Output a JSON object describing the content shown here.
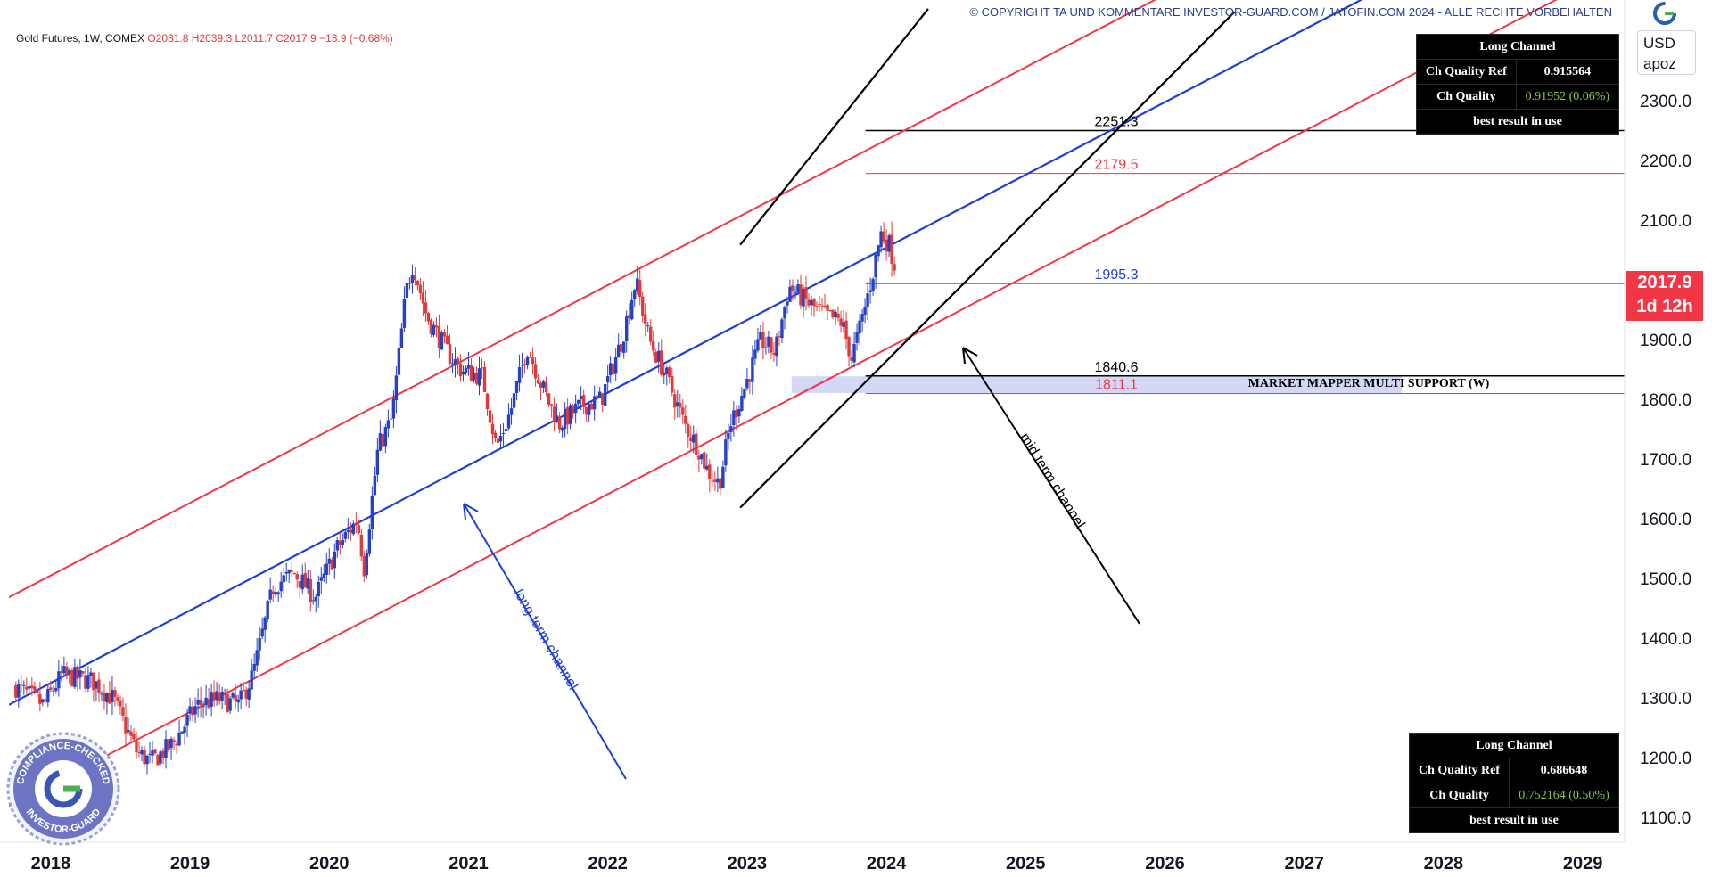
{
  "header": {
    "copyright": "© COPYRIGHT TA UND KOMMENTARE INVESTOR-GUARD.COM / JATOFIN.COM 2024 - ALLE RECHTE VORBEHALTEN"
  },
  "legend": {
    "symbol": "Gold Futures, 1W, COMEX",
    "open": "O2031.8",
    "high": "H2039.3",
    "low": "L2011.7",
    "close": "C2017.9",
    "change": "−13.9 (−0.68%)"
  },
  "price_scale": {
    "currency": "USD",
    "unit": "apoz",
    "last_price": "2017.9",
    "countdown": "1d 12h"
  },
  "table_top": {
    "title": "Long Channel",
    "ref_label": "Ch Quality Ref",
    "ref_value": "0.915564",
    "q_label": "Ch Quality",
    "q_value": "0.91952 (0.06%)",
    "footer": "best result in use"
  },
  "table_bottom": {
    "title": "Long Channel",
    "ref_label": "Ch Quality Ref",
    "ref_value": "0.686648",
    "q_label": "Ch Quality",
    "q_value": "0.752164 (0.50%)",
    "footer": "best result in use"
  },
  "seal": {
    "text_top": "COMPLIANCE-CHECKED",
    "text_bottom": "INVESTOR-GUARD"
  },
  "chart_data": {
    "type": "candlestick",
    "title": "Gold Futures, 1W, COMEX",
    "y_ticks": [
      1100,
      1200,
      1300,
      1400,
      1500,
      1600,
      1700,
      1800,
      1900,
      2000,
      2100,
      2200,
      2300
    ],
    "y_tick_labels": [
      "1100.0",
      "1200.0",
      "1300.0",
      "1400.0",
      "1500.0",
      "1600.0",
      "1700.0",
      "1800.0",
      "1900.0",
      "2000.0",
      "2100.0",
      "2200.0",
      "2300.0"
    ],
    "x_ticks": [
      "2018",
      "2019",
      "2020",
      "2021",
      "2022",
      "2023",
      "2024",
      "2025",
      "2026",
      "2027",
      "2028",
      "2029"
    ],
    "ylim": [
      1060,
      2440
    ],
    "xlim": [
      2017.7,
      2029.3
    ],
    "colors": {
      "up": "#2641c4",
      "down": "#e03a3a",
      "red_line": "#f23645",
      "blue_line": "#1e3fd6",
      "black_line": "#000000",
      "zone": "#c9cdf3"
    },
    "close_anchors": [
      [
        2017.75,
        1320
      ],
      [
        2017.95,
        1290
      ],
      [
        2018.08,
        1340
      ],
      [
        2018.3,
        1330
      ],
      [
        2018.45,
        1300
      ],
      [
        2018.62,
        1210
      ],
      [
        2018.72,
        1195
      ],
      [
        2018.88,
        1225
      ],
      [
        2019.05,
        1290
      ],
      [
        2019.2,
        1300
      ],
      [
        2019.35,
        1290
      ],
      [
        2019.45,
        1340
      ],
      [
        2019.6,
        1490
      ],
      [
        2019.75,
        1510
      ],
      [
        2019.9,
        1470
      ],
      [
        2020.05,
        1550
      ],
      [
        2020.2,
        1600
      ],
      [
        2020.25,
        1520
      ],
      [
        2020.35,
        1720
      ],
      [
        2020.45,
        1770
      ],
      [
        2020.55,
        1980
      ],
      [
        2020.6,
        2030
      ],
      [
        2020.7,
        1940
      ],
      [
        2020.85,
        1880
      ],
      [
        2020.95,
        1850
      ],
      [
        2021.1,
        1840
      ],
      [
        2021.2,
        1720
      ],
      [
        2021.3,
        1780
      ],
      [
        2021.42,
        1890
      ],
      [
        2021.55,
        1810
      ],
      [
        2021.65,
        1760
      ],
      [
        2021.8,
        1790
      ],
      [
        2021.95,
        1800
      ],
      [
        2022.1,
        1900
      ],
      [
        2022.2,
        2000
      ],
      [
        2022.3,
        1900
      ],
      [
        2022.42,
        1840
      ],
      [
        2022.55,
        1760
      ],
      [
        2022.65,
        1720
      ],
      [
        2022.72,
        1680
      ],
      [
        2022.8,
        1660
      ],
      [
        2022.88,
        1760
      ],
      [
        2022.98,
        1820
      ],
      [
        2023.1,
        1900
      ],
      [
        2023.2,
        1880
      ],
      [
        2023.3,
        1990
      ],
      [
        2023.45,
        1960
      ],
      [
        2023.58,
        1940
      ],
      [
        2023.68,
        1930
      ],
      [
        2023.75,
        1870
      ],
      [
        2023.82,
        1930
      ],
      [
        2023.9,
        2010
      ],
      [
        2023.96,
        2080
      ],
      [
        2024.02,
        2060
      ],
      [
        2024.07,
        2017.9
      ]
    ],
    "long_term_channel": {
      "label": "long term channel",
      "middle": [
        [
          2017.7,
          1290
        ],
        [
          2029.3,
          2700
        ]
      ],
      "upper": [
        [
          2017.7,
          1470
        ],
        [
          2029.3,
          2880
        ]
      ],
      "lower": [
        [
          2017.7,
          1120
        ],
        [
          2029.3,
          2530
        ]
      ]
    },
    "mid_term_channel": {
      "label": "mid term channel",
      "upper": [
        [
          2022.95,
          2060
        ],
        [
          2024.3,
          2455
        ]
      ],
      "lower": [
        [
          2022.95,
          1620
        ],
        [
          2026.5,
          2450
        ]
      ]
    },
    "levels": [
      {
        "value": 2251.3,
        "label": "2251.3",
        "color": "#000000",
        "from": 2023.85
      },
      {
        "value": 2179.5,
        "label": "2179.5",
        "color": "#f23645",
        "from": 2023.85
      },
      {
        "value": 1995.3,
        "label": "1995.3",
        "color": "#1e3fd6",
        "from": 2023.85
      },
      {
        "value": 1840.6,
        "label": "1840.6",
        "color": "#000000",
        "from": 2023.85
      },
      {
        "value": 1811.1,
        "label": "1811.1",
        "color": "#f23645",
        "from": 2023.85
      }
    ],
    "support_zone": {
      "label": "MARKET MAPPER MULTI SUPPORT (W)",
      "low": 1812,
      "high": 1840,
      "from": 2023.32,
      "to": 2027.7
    },
    "annotations": [
      {
        "text": "long term channel",
        "color": "#1e3fd6"
      },
      {
        "text": "mid term channel",
        "color": "#000000"
      }
    ]
  }
}
